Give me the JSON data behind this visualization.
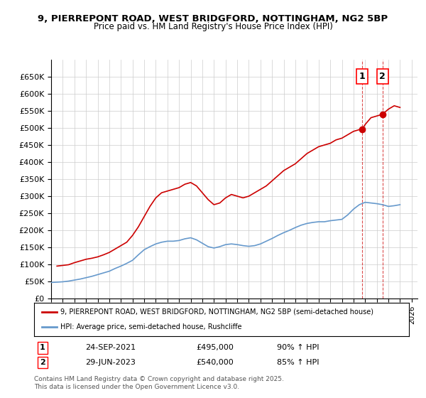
{
  "title_line1": "9, PIERREPONT ROAD, WEST BRIDGFORD, NOTTINGHAM, NG2 5BP",
  "title_line2": "Price paid vs. HM Land Registry's House Price Index (HPI)",
  "ylabel": "",
  "xlabel": "",
  "ylim": [
    0,
    700000
  ],
  "yticks": [
    0,
    50000,
    100000,
    150000,
    200000,
    250000,
    300000,
    350000,
    400000,
    450000,
    500000,
    550000,
    600000,
    650000
  ],
  "ytick_labels": [
    "£0",
    "£50K",
    "£100K",
    "£150K",
    "£200K",
    "£250K",
    "£300K",
    "£350K",
    "£400K",
    "£450K",
    "£500K",
    "£550K",
    "£600K",
    "£650K"
  ],
  "xlim_start": 1995.0,
  "xlim_end": 2026.5,
  "background_color": "#ffffff",
  "grid_color": "#cccccc",
  "red_line_color": "#cc0000",
  "blue_line_color": "#6699cc",
  "marker1_x": 2021.73,
  "marker1_y": 495000,
  "marker2_x": 2023.49,
  "marker2_y": 540000,
  "marker1_label": "1",
  "marker2_label": "2",
  "vline1_x": 2021.73,
  "vline2_x": 2023.49,
  "legend_line1": "9, PIERREPONT ROAD, WEST BRIDGFORD, NOTTINGHAM, NG2 5BP (semi-detached house)",
  "legend_line2": "HPI: Average price, semi-detached house, Rushcliffe",
  "annotation1_date": "24-SEP-2021",
  "annotation1_price": "£495,000",
  "annotation1_hpi": "90% ↑ HPI",
  "annotation2_date": "29-JUN-2023",
  "annotation2_price": "£540,000",
  "annotation2_hpi": "85% ↑ HPI",
  "footer": "Contains HM Land Registry data © Crown copyright and database right 2025.\nThis data is licensed under the Open Government Licence v3.0.",
  "red_x": [
    1995.5,
    1996.0,
    1996.5,
    1997.0,
    1997.5,
    1998.0,
    1998.5,
    1999.0,
    1999.5,
    2000.0,
    2000.5,
    2001.0,
    2001.5,
    2002.0,
    2002.5,
    2003.0,
    2003.5,
    2004.0,
    2004.5,
    2005.0,
    2005.5,
    2006.0,
    2006.5,
    2007.0,
    2007.5,
    2008.0,
    2008.5,
    2009.0,
    2009.5,
    2010.0,
    2010.5,
    2011.0,
    2011.5,
    2012.0,
    2012.5,
    2013.0,
    2013.5,
    2014.0,
    2014.5,
    2015.0,
    2015.5,
    2016.0,
    2016.5,
    2017.0,
    2017.5,
    2018.0,
    2018.5,
    2019.0,
    2019.5,
    2020.0,
    2020.5,
    2021.0,
    2021.5,
    2021.73,
    2022.0,
    2022.5,
    2023.0,
    2023.49,
    2024.0,
    2024.5,
    2025.0
  ],
  "red_y": [
    95000,
    97000,
    99000,
    105000,
    110000,
    115000,
    118000,
    122000,
    128000,
    135000,
    145000,
    155000,
    165000,
    185000,
    210000,
    240000,
    270000,
    295000,
    310000,
    315000,
    320000,
    325000,
    335000,
    340000,
    330000,
    310000,
    290000,
    275000,
    280000,
    295000,
    305000,
    300000,
    295000,
    300000,
    310000,
    320000,
    330000,
    345000,
    360000,
    375000,
    385000,
    395000,
    410000,
    425000,
    435000,
    445000,
    450000,
    455000,
    465000,
    470000,
    480000,
    490000,
    495000,
    495000,
    510000,
    530000,
    535000,
    540000,
    555000,
    565000,
    560000
  ],
  "blue_x": [
    1995.0,
    1995.5,
    1996.0,
    1996.5,
    1997.0,
    1997.5,
    1998.0,
    1998.5,
    1999.0,
    1999.5,
    2000.0,
    2000.5,
    2001.0,
    2001.5,
    2002.0,
    2002.5,
    2003.0,
    2003.5,
    2004.0,
    2004.5,
    2005.0,
    2005.5,
    2006.0,
    2006.5,
    2007.0,
    2007.5,
    2008.0,
    2008.5,
    2009.0,
    2009.5,
    2010.0,
    2010.5,
    2011.0,
    2011.5,
    2012.0,
    2012.5,
    2013.0,
    2013.5,
    2014.0,
    2014.5,
    2015.0,
    2015.5,
    2016.0,
    2016.5,
    2017.0,
    2017.5,
    2018.0,
    2018.5,
    2019.0,
    2019.5,
    2020.0,
    2020.5,
    2021.0,
    2021.5,
    2022.0,
    2022.5,
    2023.0,
    2023.5,
    2024.0,
    2024.5,
    2025.0
  ],
  "blue_y": [
    47000,
    48000,
    49000,
    51000,
    54000,
    57000,
    61000,
    65000,
    70000,
    75000,
    80000,
    88000,
    95000,
    103000,
    112000,
    128000,
    143000,
    152000,
    160000,
    165000,
    168000,
    168000,
    170000,
    175000,
    178000,
    172000,
    162000,
    152000,
    148000,
    152000,
    158000,
    160000,
    158000,
    155000,
    153000,
    155000,
    160000,
    168000,
    176000,
    185000,
    193000,
    200000,
    208000,
    215000,
    220000,
    223000,
    225000,
    225000,
    228000,
    230000,
    232000,
    245000,
    262000,
    275000,
    282000,
    280000,
    278000,
    275000,
    270000,
    272000,
    275000
  ]
}
